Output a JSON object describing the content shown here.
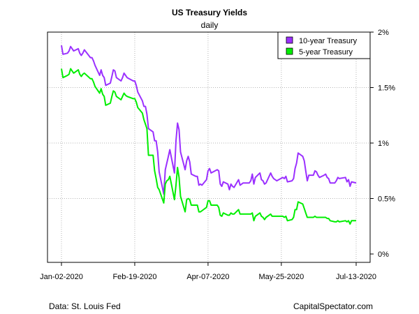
{
  "chart_data": {
    "type": "line",
    "title": "US Treasury Yields",
    "subtitle": "daily",
    "x_ticks": [
      "Jan-02-2020",
      "Feb-19-2020",
      "Apr-07-2020",
      "May-25-2020",
      "Jul-13-2020"
    ],
    "y_ticks": [
      "0%",
      "0.5%",
      "1%",
      "1.5%",
      "2%"
    ],
    "xlim": [
      "2020-01-02",
      "2020-07-13"
    ],
    "ylim": [
      0,
      2
    ],
    "y_unit": "%",
    "grid": true,
    "legend_position": "top-right",
    "series": [
      {
        "name": "10-year Treasury",
        "color": "#9B30FF",
        "points": [
          [
            "2020-01-02",
            1.88
          ],
          [
            "2020-01-03",
            1.8
          ],
          [
            "2020-01-06",
            1.81
          ],
          [
            "2020-01-07",
            1.83
          ],
          [
            "2020-01-08",
            1.87
          ],
          [
            "2020-01-09",
            1.85
          ],
          [
            "2020-01-10",
            1.83
          ],
          [
            "2020-01-13",
            1.85
          ],
          [
            "2020-01-14",
            1.81
          ],
          [
            "2020-01-15",
            1.79
          ],
          [
            "2020-01-16",
            1.81
          ],
          [
            "2020-01-17",
            1.84
          ],
          [
            "2020-01-21",
            1.77
          ],
          [
            "2020-01-22",
            1.77
          ],
          [
            "2020-01-23",
            1.74
          ],
          [
            "2020-01-24",
            1.7
          ],
          [
            "2020-01-27",
            1.61
          ],
          [
            "2020-01-28",
            1.66
          ],
          [
            "2020-01-29",
            1.61
          ],
          [
            "2020-01-30",
            1.59
          ],
          [
            "2020-01-31",
            1.52
          ],
          [
            "2020-02-03",
            1.54
          ],
          [
            "2020-02-04",
            1.6
          ],
          [
            "2020-02-05",
            1.66
          ],
          [
            "2020-02-06",
            1.65
          ],
          [
            "2020-02-07",
            1.59
          ],
          [
            "2020-02-10",
            1.56
          ],
          [
            "2020-02-11",
            1.59
          ],
          [
            "2020-02-12",
            1.63
          ],
          [
            "2020-02-13",
            1.61
          ],
          [
            "2020-02-14",
            1.59
          ],
          [
            "2020-02-18",
            1.56
          ],
          [
            "2020-02-19",
            1.56
          ],
          [
            "2020-02-20",
            1.52
          ],
          [
            "2020-02-21",
            1.46
          ],
          [
            "2020-02-24",
            1.38
          ],
          [
            "2020-02-25",
            1.33
          ],
          [
            "2020-02-26",
            1.33
          ],
          [
            "2020-02-27",
            1.26
          ],
          [
            "2020-02-28",
            1.13
          ],
          [
            "2020-03-02",
            1.1
          ],
          [
            "2020-03-03",
            1.02
          ],
          [
            "2020-03-04",
            1.02
          ],
          [
            "2020-03-05",
            0.92
          ],
          [
            "2020-03-06",
            0.74
          ],
          [
            "2020-03-09",
            0.54
          ],
          [
            "2020-03-10",
            0.76
          ],
          [
            "2020-03-11",
            0.82
          ],
          [
            "2020-03-12",
            0.88
          ],
          [
            "2020-03-13",
            0.94
          ],
          [
            "2020-03-16",
            0.73
          ],
          [
            "2020-03-17",
            1.02
          ],
          [
            "2020-03-18",
            1.18
          ],
          [
            "2020-03-19",
            1.12
          ],
          [
            "2020-03-20",
            0.92
          ],
          [
            "2020-03-23",
            0.76
          ],
          [
            "2020-03-24",
            0.84
          ],
          [
            "2020-03-25",
            0.88
          ],
          [
            "2020-03-26",
            0.83
          ],
          [
            "2020-03-27",
            0.72
          ],
          [
            "2020-03-30",
            0.7
          ],
          [
            "2020-03-31",
            0.7
          ],
          [
            "2020-04-01",
            0.62
          ],
          [
            "2020-04-02",
            0.63
          ],
          [
            "2020-04-03",
            0.62
          ],
          [
            "2020-04-06",
            0.67
          ],
          [
            "2020-04-07",
            0.75
          ],
          [
            "2020-04-08",
            0.77
          ],
          [
            "2020-04-09",
            0.73
          ],
          [
            "2020-04-13",
            0.76
          ],
          [
            "2020-04-14",
            0.75
          ],
          [
            "2020-04-15",
            0.63
          ],
          [
            "2020-04-16",
            0.61
          ],
          [
            "2020-04-17",
            0.65
          ],
          [
            "2020-04-20",
            0.63
          ],
          [
            "2020-04-21",
            0.58
          ],
          [
            "2020-04-22",
            0.63
          ],
          [
            "2020-04-23",
            0.61
          ],
          [
            "2020-04-24",
            0.6
          ],
          [
            "2020-04-27",
            0.67
          ],
          [
            "2020-04-28",
            0.62
          ],
          [
            "2020-04-29",
            0.63
          ],
          [
            "2020-04-30",
            0.64
          ],
          [
            "2020-05-01",
            0.64
          ],
          [
            "2020-05-04",
            0.64
          ],
          [
            "2020-05-05",
            0.66
          ],
          [
            "2020-05-06",
            0.72
          ],
          [
            "2020-05-07",
            0.63
          ],
          [
            "2020-05-08",
            0.69
          ],
          [
            "2020-05-11",
            0.73
          ],
          [
            "2020-05-12",
            0.67
          ],
          [
            "2020-05-13",
            0.66
          ],
          [
            "2020-05-14",
            0.63
          ],
          [
            "2020-05-15",
            0.64
          ],
          [
            "2020-05-18",
            0.73
          ],
          [
            "2020-05-19",
            0.7
          ],
          [
            "2020-05-20",
            0.68
          ],
          [
            "2020-05-21",
            0.67
          ],
          [
            "2020-05-22",
            0.66
          ],
          [
            "2020-05-26",
            0.69
          ],
          [
            "2020-05-27",
            0.68
          ],
          [
            "2020-05-28",
            0.7
          ],
          [
            "2020-05-29",
            0.65
          ],
          [
            "2020-06-01",
            0.66
          ],
          [
            "2020-06-02",
            0.68
          ],
          [
            "2020-06-03",
            0.77
          ],
          [
            "2020-06-04",
            0.82
          ],
          [
            "2020-06-05",
            0.91
          ],
          [
            "2020-06-08",
            0.88
          ],
          [
            "2020-06-09",
            0.84
          ],
          [
            "2020-06-10",
            0.75
          ],
          [
            "2020-06-11",
            0.66
          ],
          [
            "2020-06-12",
            0.71
          ],
          [
            "2020-06-15",
            0.71
          ],
          [
            "2020-06-16",
            0.75
          ],
          [
            "2020-06-17",
            0.74
          ],
          [
            "2020-06-18",
            0.71
          ],
          [
            "2020-06-19",
            0.69
          ],
          [
            "2020-06-22",
            0.71
          ],
          [
            "2020-06-23",
            0.72
          ],
          [
            "2020-06-24",
            0.69
          ],
          [
            "2020-06-25",
            0.68
          ],
          [
            "2020-06-26",
            0.64
          ],
          [
            "2020-06-29",
            0.64
          ],
          [
            "2020-06-30",
            0.66
          ],
          [
            "2020-07-01",
            0.69
          ],
          [
            "2020-07-02",
            0.68
          ],
          [
            "2020-07-06",
            0.69
          ],
          [
            "2020-07-07",
            0.65
          ],
          [
            "2020-07-08",
            0.67
          ],
          [
            "2020-07-09",
            0.61
          ],
          [
            "2020-07-10",
            0.65
          ],
          [
            "2020-07-13",
            0.64
          ]
        ]
      },
      {
        "name": "5-year Treasury",
        "color": "#00EE00",
        "points": [
          [
            "2020-01-02",
            1.67
          ],
          [
            "2020-01-03",
            1.59
          ],
          [
            "2020-01-06",
            1.61
          ],
          [
            "2020-01-07",
            1.62
          ],
          [
            "2020-01-08",
            1.67
          ],
          [
            "2020-01-09",
            1.65
          ],
          [
            "2020-01-10",
            1.63
          ],
          [
            "2020-01-13",
            1.66
          ],
          [
            "2020-01-14",
            1.62
          ],
          [
            "2020-01-15",
            1.6
          ],
          [
            "2020-01-16",
            1.62
          ],
          [
            "2020-01-17",
            1.63
          ],
          [
            "2020-01-21",
            1.58
          ],
          [
            "2020-01-22",
            1.58
          ],
          [
            "2020-01-23",
            1.55
          ],
          [
            "2020-01-24",
            1.51
          ],
          [
            "2020-01-27",
            1.45
          ],
          [
            "2020-01-28",
            1.49
          ],
          [
            "2020-01-29",
            1.44
          ],
          [
            "2020-01-30",
            1.42
          ],
          [
            "2020-01-31",
            1.34
          ],
          [
            "2020-02-03",
            1.36
          ],
          [
            "2020-02-04",
            1.42
          ],
          [
            "2020-02-05",
            1.47
          ],
          [
            "2020-02-06",
            1.46
          ],
          [
            "2020-02-07",
            1.42
          ],
          [
            "2020-02-10",
            1.39
          ],
          [
            "2020-02-11",
            1.42
          ],
          [
            "2020-02-12",
            1.45
          ],
          [
            "2020-02-13",
            1.43
          ],
          [
            "2020-02-14",
            1.42
          ],
          [
            "2020-02-18",
            1.4
          ],
          [
            "2020-02-19",
            1.4
          ],
          [
            "2020-02-20",
            1.37
          ],
          [
            "2020-02-21",
            1.32
          ],
          [
            "2020-02-24",
            1.27
          ],
          [
            "2020-02-25",
            1.21
          ],
          [
            "2020-02-26",
            1.17
          ],
          [
            "2020-02-27",
            1.13
          ],
          [
            "2020-02-28",
            0.89
          ],
          [
            "2020-03-02",
            0.89
          ],
          [
            "2020-03-03",
            0.75
          ],
          [
            "2020-03-04",
            0.68
          ],
          [
            "2020-03-05",
            0.6
          ],
          [
            "2020-03-06",
            0.58
          ],
          [
            "2020-03-09",
            0.46
          ],
          [
            "2020-03-10",
            0.63
          ],
          [
            "2020-03-11",
            0.66
          ],
          [
            "2020-03-12",
            0.67
          ],
          [
            "2020-03-13",
            0.7
          ],
          [
            "2020-03-16",
            0.49
          ],
          [
            "2020-03-17",
            0.62
          ],
          [
            "2020-03-18",
            0.78
          ],
          [
            "2020-03-19",
            0.69
          ],
          [
            "2020-03-20",
            0.52
          ],
          [
            "2020-03-23",
            0.38
          ],
          [
            "2020-03-24",
            0.49
          ],
          [
            "2020-03-25",
            0.5
          ],
          [
            "2020-03-26",
            0.49
          ],
          [
            "2020-03-27",
            0.44
          ],
          [
            "2020-03-30",
            0.44
          ],
          [
            "2020-03-31",
            0.44
          ],
          [
            "2020-04-01",
            0.38
          ],
          [
            "2020-04-02",
            0.38
          ],
          [
            "2020-04-03",
            0.39
          ],
          [
            "2020-04-06",
            0.42
          ],
          [
            "2020-04-07",
            0.48
          ],
          [
            "2020-04-08",
            0.48
          ],
          [
            "2020-04-09",
            0.44
          ],
          [
            "2020-04-13",
            0.44
          ],
          [
            "2020-04-14",
            0.42
          ],
          [
            "2020-04-15",
            0.35
          ],
          [
            "2020-04-16",
            0.34
          ],
          [
            "2020-04-17",
            0.37
          ],
          [
            "2020-04-20",
            0.35
          ],
          [
            "2020-04-21",
            0.35
          ],
          [
            "2020-04-22",
            0.37
          ],
          [
            "2020-04-23",
            0.36
          ],
          [
            "2020-04-24",
            0.36
          ],
          [
            "2020-04-27",
            0.4
          ],
          [
            "2020-04-28",
            0.36
          ],
          [
            "2020-04-29",
            0.36
          ],
          [
            "2020-04-30",
            0.36
          ],
          [
            "2020-05-01",
            0.36
          ],
          [
            "2020-05-04",
            0.36
          ],
          [
            "2020-05-05",
            0.36
          ],
          [
            "2020-05-06",
            0.37
          ],
          [
            "2020-05-07",
            0.3
          ],
          [
            "2020-05-08",
            0.34
          ],
          [
            "2020-05-11",
            0.37
          ],
          [
            "2020-05-12",
            0.34
          ],
          [
            "2020-05-13",
            0.33
          ],
          [
            "2020-05-14",
            0.31
          ],
          [
            "2020-05-15",
            0.33
          ],
          [
            "2020-05-18",
            0.36
          ],
          [
            "2020-05-19",
            0.34
          ],
          [
            "2020-05-20",
            0.34
          ],
          [
            "2020-05-21",
            0.34
          ],
          [
            "2020-05-22",
            0.34
          ],
          [
            "2020-05-26",
            0.34
          ],
          [
            "2020-05-27",
            0.33
          ],
          [
            "2020-05-28",
            0.34
          ],
          [
            "2020-05-29",
            0.3
          ],
          [
            "2020-06-01",
            0.31
          ],
          [
            "2020-06-02",
            0.33
          ],
          [
            "2020-06-03",
            0.4
          ],
          [
            "2020-06-04",
            0.4
          ],
          [
            "2020-06-05",
            0.47
          ],
          [
            "2020-06-08",
            0.45
          ],
          [
            "2020-06-09",
            0.41
          ],
          [
            "2020-06-10",
            0.37
          ],
          [
            "2020-06-11",
            0.33
          ],
          [
            "2020-06-12",
            0.33
          ],
          [
            "2020-06-15",
            0.33
          ],
          [
            "2020-06-16",
            0.34
          ],
          [
            "2020-06-17",
            0.33
          ],
          [
            "2020-06-18",
            0.33
          ],
          [
            "2020-06-19",
            0.33
          ],
          [
            "2020-06-22",
            0.33
          ],
          [
            "2020-06-23",
            0.33
          ],
          [
            "2020-06-24",
            0.32
          ],
          [
            "2020-06-25",
            0.32
          ],
          [
            "2020-06-26",
            0.3
          ],
          [
            "2020-06-29",
            0.29
          ],
          [
            "2020-06-30",
            0.29
          ],
          [
            "2020-07-01",
            0.3
          ],
          [
            "2020-07-02",
            0.29
          ],
          [
            "2020-07-06",
            0.3
          ],
          [
            "2020-07-07",
            0.29
          ],
          [
            "2020-07-08",
            0.3
          ],
          [
            "2020-07-09",
            0.27
          ],
          [
            "2020-07-10",
            0.3
          ],
          [
            "2020-07-13",
            0.3
          ]
        ]
      }
    ]
  },
  "footer": {
    "source": "Data: St. Louis Fed",
    "credit": "CapitalSpectator.com"
  }
}
